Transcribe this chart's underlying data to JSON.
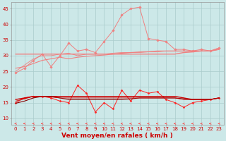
{
  "x": [
    0,
    1,
    2,
    3,
    4,
    5,
    6,
    7,
    8,
    9,
    10,
    11,
    12,
    13,
    14,
    15,
    16,
    17,
    18,
    19,
    20,
    21,
    22,
    23
  ],
  "series": [
    {
      "name": "rafales_high",
      "color": "#f08080",
      "lw": 0.7,
      "marker": "D",
      "ms": 1.8,
      "y": [
        24.5,
        26.0,
        28.5,
        30.5,
        26.5,
        30.0,
        34.0,
        31.5,
        32.0,
        31.0,
        34.5,
        38.0,
        43.0,
        45.0,
        45.5,
        35.5,
        35.0,
        34.5,
        32.0,
        32.0,
        31.5,
        32.0,
        31.5,
        32.5
      ]
    },
    {
      "name": "vent_moy_smooth1",
      "color": "#f08080",
      "lw": 1.0,
      "marker": null,
      "ms": 0,
      "y": [
        30.5,
        30.5,
        30.5,
        30.5,
        30.5,
        30.5,
        30.5,
        30.5,
        30.5,
        30.5,
        30.5,
        30.5,
        30.5,
        30.5,
        30.5,
        30.5,
        30.5,
        30.5,
        30.5,
        31.0,
        31.2,
        31.5,
        31.5,
        32.0
      ]
    },
    {
      "name": "vent_moy_smooth2",
      "color": "#f08080",
      "lw": 0.8,
      "marker": null,
      "ms": 0,
      "y": [
        26.0,
        26.5,
        27.5,
        28.5,
        29.0,
        29.5,
        29.0,
        29.5,
        29.8,
        30.0,
        30.2,
        30.5,
        30.8,
        31.0,
        31.2,
        31.3,
        31.5,
        31.5,
        31.5,
        31.5,
        31.5,
        31.5,
        31.5,
        32.0
      ]
    },
    {
      "name": "vent_moy_smooth3",
      "color": "#f08080",
      "lw": 0.6,
      "marker": null,
      "ms": 0,
      "y": [
        25.0,
        27.0,
        29.0,
        30.0,
        30.0,
        30.5,
        30.8,
        30.0,
        30.5,
        30.5,
        30.5,
        30.8,
        31.0,
        31.0,
        31.0,
        31.2,
        31.2,
        31.5,
        31.5,
        31.5,
        31.5,
        31.5,
        31.5,
        32.5
      ]
    },
    {
      "name": "vent_inst_low",
      "color": "#ff2222",
      "lw": 0.7,
      "marker": "D",
      "ms": 1.5,
      "y": [
        15.0,
        16.5,
        17.0,
        17.0,
        16.5,
        15.5,
        15.0,
        20.5,
        18.0,
        12.0,
        15.0,
        13.0,
        19.0,
        15.5,
        19.0,
        18.0,
        18.5,
        16.0,
        15.0,
        13.5,
        15.0,
        15.5,
        16.0,
        16.5
      ]
    },
    {
      "name": "vent_moy_low1",
      "color": "#cc0000",
      "lw": 1.0,
      "marker": null,
      "ms": 0,
      "y": [
        16.0,
        16.5,
        17.0,
        17.0,
        17.0,
        17.0,
        17.0,
        17.0,
        17.0,
        17.0,
        17.0,
        17.0,
        17.0,
        17.0,
        17.0,
        17.0,
        17.0,
        17.0,
        17.0,
        16.5,
        16.0,
        16.0,
        16.0,
        16.5
      ]
    },
    {
      "name": "vent_moy_low2",
      "color": "#880000",
      "lw": 0.8,
      "marker": null,
      "ms": 0,
      "y": [
        14.8,
        15.5,
        16.5,
        17.0,
        17.0,
        16.5,
        16.0,
        16.0,
        16.0,
        16.0,
        16.0,
        16.0,
        16.0,
        16.2,
        16.5,
        16.5,
        16.5,
        16.5,
        16.5,
        16.2,
        16.0,
        16.0,
        16.0,
        16.5
      ]
    },
    {
      "name": "vent_moy_low3",
      "color": "#cc0000",
      "lw": 0.6,
      "marker": null,
      "ms": 0,
      "y": [
        15.5,
        16.2,
        17.0,
        17.0,
        16.8,
        16.5,
        16.5,
        16.5,
        16.5,
        16.5,
        16.5,
        16.5,
        16.5,
        16.5,
        16.5,
        16.5,
        16.5,
        16.5,
        16.5,
        16.0,
        16.0,
        16.0,
        16.0,
        16.5
      ]
    }
  ],
  "xlabel": "Vent moyen/en rafales ( km/h )",
  "xlabel_fontsize": 6.5,
  "tick_fontsize": 5.0,
  "ylim": [
    8,
    47
  ],
  "yticks": [
    10,
    15,
    20,
    25,
    30,
    35,
    40,
    45
  ],
  "bg_color": "#cce8e8",
  "grid_color": "#aacccc",
  "arrow_color": "#ff4444"
}
